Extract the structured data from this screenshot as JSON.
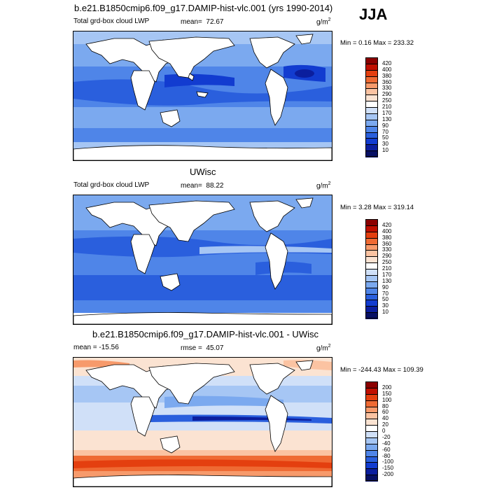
{
  "season": "JJA",
  "unit_base": "g/m",
  "unit_sup": "2",
  "panels": [
    {
      "title": "b.e21.B1850cmip6.f09_g17.DAMIP-hist-vlc.001 (yrs 1990-2014)",
      "left_label": "Total grd-box cloud LWP",
      "stat_label": "mean=",
      "stat_value": "72.67",
      "minmax": "Min =   0.16 Max = 233.32",
      "colorbar_levels": [
        "420",
        "400",
        "380",
        "360",
        "330",
        "290",
        "250",
        "210",
        "170",
        "130",
        "90",
        "70",
        "50",
        "30",
        "10"
      ],
      "colors": [
        "#8b0000",
        "#c00f00",
        "#e43f0f",
        "#ef6a33",
        "#f79a6b",
        "#fbc3a2",
        "#fbe3d2",
        "#ffffff",
        "#d0e0f8",
        "#a6c6f4",
        "#7ba9ef",
        "#4f85e8",
        "#2a5fdd",
        "#123cd0",
        "#0b1e9e",
        "#071064"
      ]
    },
    {
      "title": "UWisc",
      "left_label": "Total grd-box cloud LWP",
      "stat_label": "mean=",
      "stat_value": "88.22",
      "minmax": "Min =   3.28 Max = 319.14",
      "colorbar_levels": [
        "420",
        "400",
        "380",
        "360",
        "330",
        "290",
        "250",
        "210",
        "170",
        "130",
        "90",
        "70",
        "50",
        "30",
        "10"
      ],
      "colors": [
        "#8b0000",
        "#c00f00",
        "#e43f0f",
        "#ef6a33",
        "#f79a6b",
        "#fbc3a2",
        "#fbe3d2",
        "#ffffff",
        "#d0e0f8",
        "#a6c6f4",
        "#7ba9ef",
        "#4f85e8",
        "#2a5fdd",
        "#123cd0",
        "#0b1e9e",
        "#071064"
      ]
    },
    {
      "title": "b.e21.B1850cmip6.f09_g17.DAMIP-hist-vlc.001 - UWisc",
      "left_label": "mean = -15.56",
      "stat_label": "rmse =",
      "stat_value": "45.07",
      "minmax": "Min = -244.43 Max = 109.39",
      "colorbar_levels": [
        "200",
        "150",
        "100",
        "80",
        "60",
        "40",
        "20",
        "0",
        "-20",
        "-40",
        "-60",
        "-80",
        "-100",
        "-150",
        "-200"
      ],
      "colors": [
        "#8b0000",
        "#c00f00",
        "#e43f0f",
        "#ef6a33",
        "#f79a6b",
        "#fbc3a2",
        "#fbe3d2",
        "#ffffff",
        "#d0e0f8",
        "#a6c6f4",
        "#7ba9ef",
        "#4f85e8",
        "#2a5fdd",
        "#123cd0",
        "#0b1e9e",
        "#071064"
      ]
    }
  ]
}
